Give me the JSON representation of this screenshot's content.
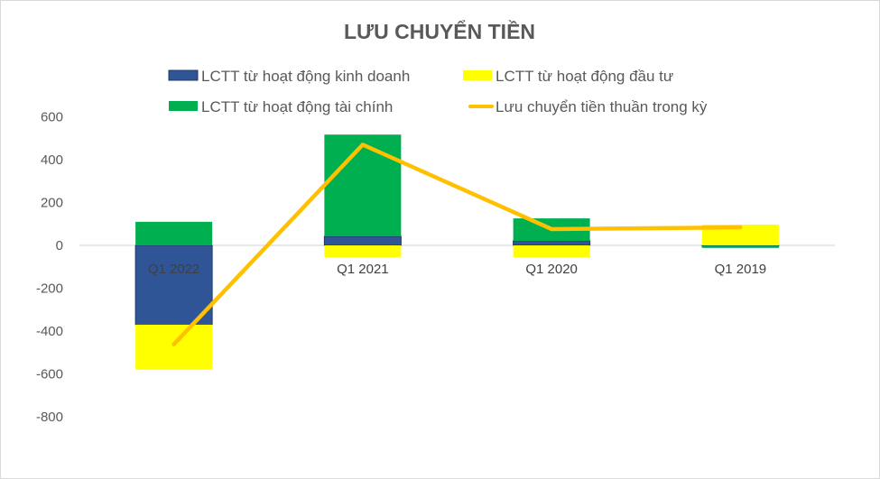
{
  "chart_data": {
    "type": "bar",
    "stacked": true,
    "title": "LƯU CHUYỂN TIỀN",
    "categories": [
      "Q1 2022",
      "Q1 2021",
      "Q1 2020",
      "Q1 2019"
    ],
    "ylim": [
      -800,
      600
    ],
    "yticks": [
      600,
      400,
      200,
      0,
      -200,
      -400,
      -600,
      -800
    ],
    "grid": false,
    "legend_position": "top",
    "series": [
      {
        "name": "LCTT từ hoạt động kinh doanh",
        "type": "bar",
        "color": "#2f5597",
        "values": [
          -370,
          42,
          21,
          -2
        ]
      },
      {
        "name": "LCTT từ hoạt động đầu tư",
        "type": "bar",
        "color": "#ffff00",
        "values": [
          -210,
          -55,
          -55,
          97
        ]
      },
      {
        "name": "LCTT từ hoạt động tài chính",
        "type": "bar",
        "color": "#00b050",
        "values": [
          110,
          475,
          105,
          -10
        ]
      },
      {
        "name": "Lưu chuyển tiền thuần trong kỳ",
        "type": "line",
        "color": "#ffc000",
        "values": [
          -462,
          470,
          76,
          84
        ]
      }
    ]
  }
}
